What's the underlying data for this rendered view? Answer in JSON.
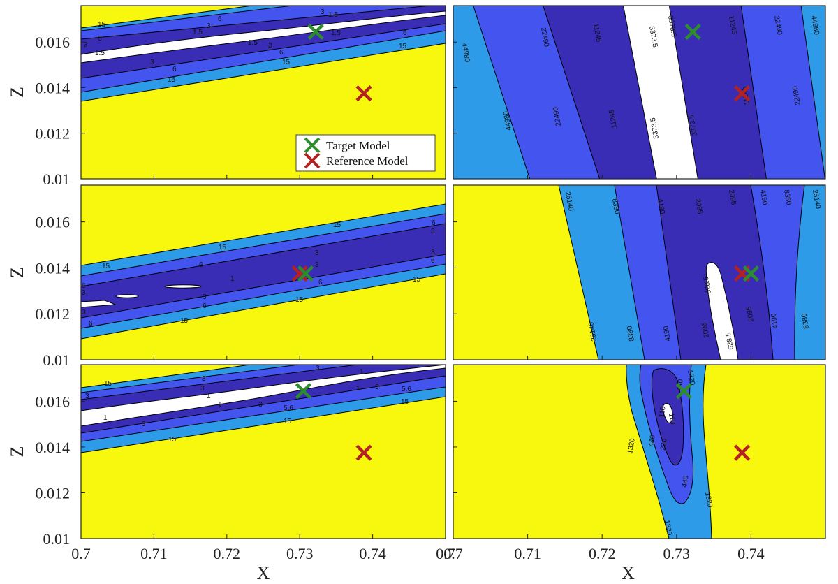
{
  "colors": {
    "yellow": "#f8f80e",
    "light_blue": "#2e9be8",
    "mid_blue": "#4454ee",
    "dark_blue": "#3a2db5",
    "white": "#ffffff",
    "target_marker": "#2e8b2e",
    "reference_marker": "#b22222"
  },
  "chart_data": {
    "type": "contour",
    "layout": "3 rows x 2 columns",
    "xlabel": "X",
    "ylabel": "Z",
    "xlim": [
      0.7,
      0.75
    ],
    "ylim": [
      0.01,
      0.0176
    ],
    "xticks": [
      "0.7",
      "0.71",
      "0.72",
      "0.73",
      "0.74"
    ],
    "yticks": [
      "0.01",
      "0.012",
      "0.014",
      "0.016"
    ],
    "legend": {
      "entries": [
        "Target Model",
        "Reference Model"
      ],
      "location": "bottom-right of top-left panel"
    },
    "panels": [
      {
        "row": 1,
        "col": 1,
        "levels": [
          "1.5",
          "3",
          "6",
          "15"
        ],
        "target": {
          "x": 0.7322,
          "z": 0.01645
        },
        "reference": {
          "x": 0.7388,
          "z": 0.01375
        }
      },
      {
        "row": 1,
        "col": 2,
        "levels": [
          "3373.5",
          "11245",
          "22490",
          "44980"
        ],
        "target": {
          "x": 0.7322,
          "z": 0.01645
        },
        "reference": {
          "x": 0.7388,
          "z": 0.01375
        }
      },
      {
        "row": 2,
        "col": 1,
        "levels": [
          "1",
          "3",
          "6",
          "15"
        ],
        "target": {
          "x": 0.7308,
          "z": 0.01375
        },
        "reference": {
          "x": 0.73,
          "z": 0.01375
        }
      },
      {
        "row": 2,
        "col": 2,
        "levels": [
          "628.5",
          "2095",
          "4190",
          "8380",
          "25140"
        ],
        "target": {
          "x": 0.74,
          "z": 0.01375
        },
        "reference": {
          "x": 0.7388,
          "z": 0.01375
        }
      },
      {
        "row": 3,
        "col": 1,
        "levels": [
          "1",
          "3",
          "5.6",
          "15"
        ],
        "target": {
          "x": 0.7305,
          "z": 0.01645
        },
        "reference": {
          "x": 0.7388,
          "z": 0.01375
        }
      },
      {
        "row": 3,
        "col": 2,
        "levels": [
          "110",
          "220",
          "440",
          "1320"
        ],
        "target": {
          "x": 0.731,
          "z": 0.01645
        },
        "reference": {
          "x": 0.7388,
          "z": 0.01375
        }
      }
    ]
  }
}
